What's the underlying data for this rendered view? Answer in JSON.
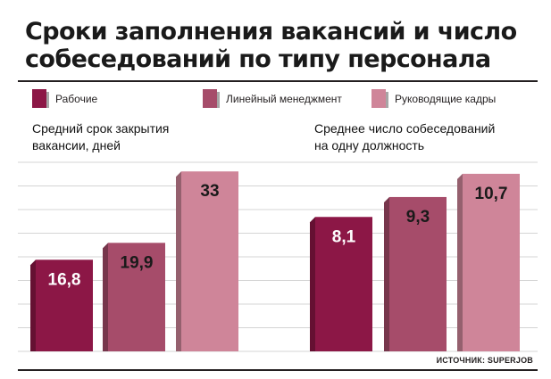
{
  "header": {
    "title_line1": "Сроки заполнения вакансий и число",
    "title_line2": "собеседований по типу персонала"
  },
  "legend": [
    {
      "label": "Рабочие",
      "color": "#8c1746"
    },
    {
      "label": "Линейный менеджмент",
      "color": "#a64c6a"
    },
    {
      "label": "Руководящие кадры",
      "color": "#cf8599"
    }
  ],
  "source": "ИСТОЧНИК: SUPERJOB",
  "chart_data": [
    {
      "type": "bar",
      "title": "Средний срок закрытия вакансии, дней",
      "title_line1": "Средний срок закрытия",
      "title_line2": "вакансии, дней",
      "categories": [
        "Рабочие",
        "Линейный менеджмент",
        "Руководящие кадры"
      ],
      "values": [
        16.8,
        19.9,
        33
      ],
      "value_labels": [
        "16,8",
        "19,9",
        "33"
      ],
      "colors": [
        "#8c1746",
        "#a64c6a",
        "#cf8599"
      ],
      "ylim": [
        0,
        35
      ],
      "grid": true,
      "legend": "top"
    },
    {
      "type": "bar",
      "title": "Среднее число собеседований на одну должность",
      "title_line1": "Среднее число собеседований",
      "title_line2": "на одну должность",
      "categories": [
        "Рабочие",
        "Линейный менеджмент",
        "Руководящие кадры"
      ],
      "values": [
        8.1,
        9.3,
        10.7
      ],
      "value_labels": [
        "8,1",
        "9,3",
        "10,7"
      ],
      "colors": [
        "#8c1746",
        "#a64c6a",
        "#cf8599"
      ],
      "ylim": [
        0,
        11.5
      ],
      "grid": true,
      "legend": "top"
    }
  ]
}
